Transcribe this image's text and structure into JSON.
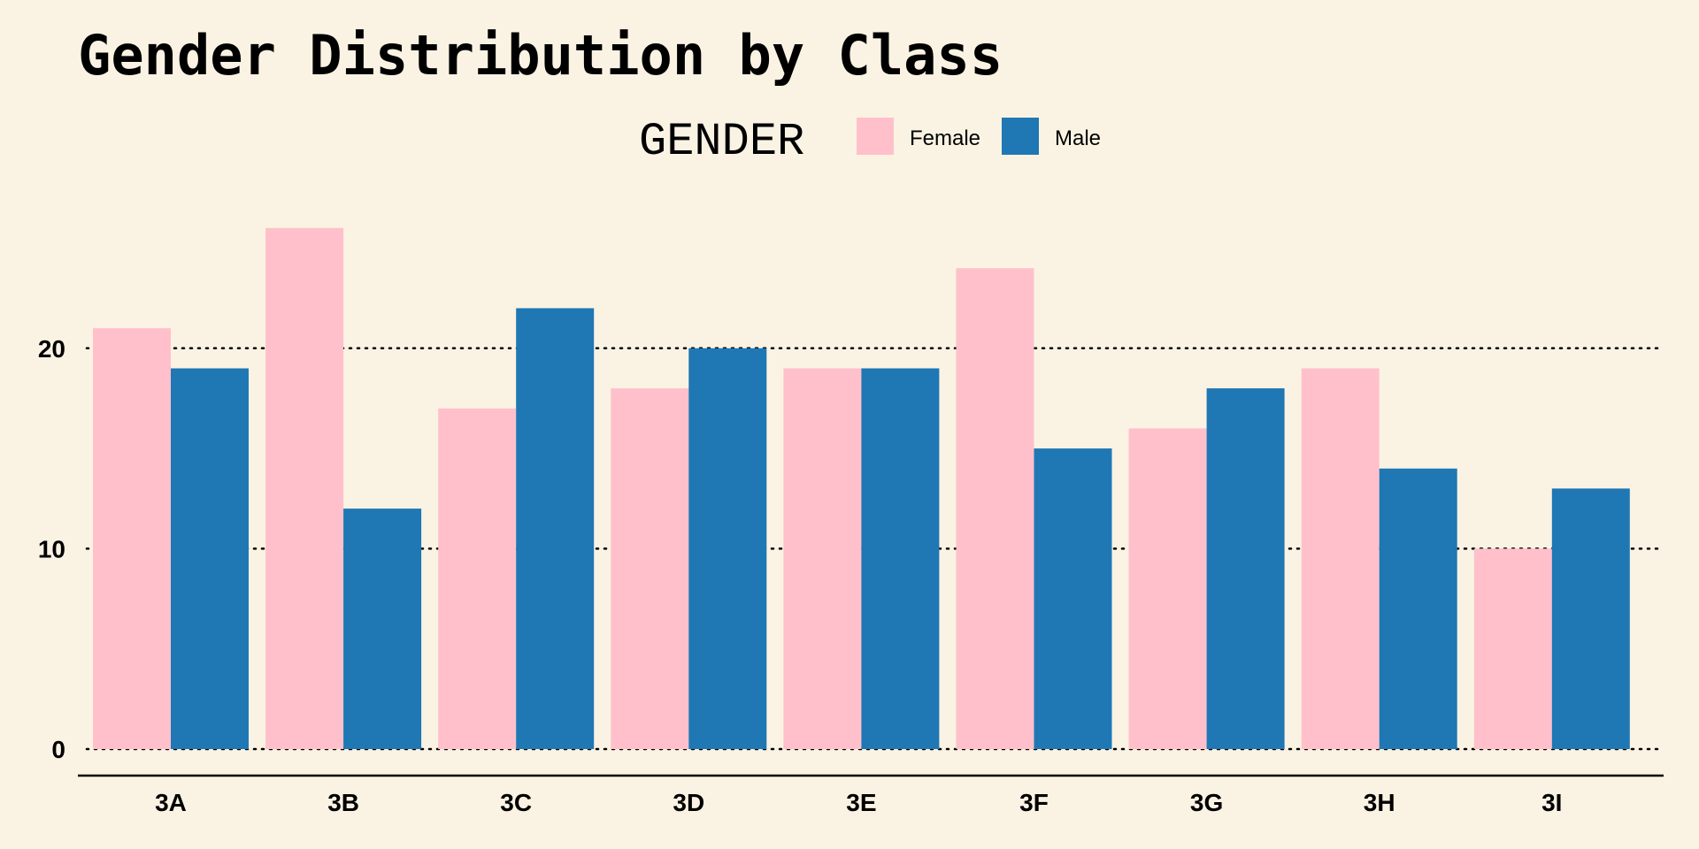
{
  "chart_data": {
    "type": "bar",
    "title": "Gender Distribution by Class",
    "xlabel": "",
    "ylabel": "",
    "categories": [
      "3A",
      "3B",
      "3C",
      "3D",
      "3E",
      "3F",
      "3G",
      "3H",
      "3I"
    ],
    "series": [
      {
        "name": "Female",
        "color": "#ffc0cb",
        "values": [
          21,
          26,
          17,
          18,
          19,
          24,
          16,
          19,
          10
        ]
      },
      {
        "name": "Male",
        "color": "#1f77b4",
        "values": [
          19,
          12,
          22,
          20,
          19,
          15,
          18,
          14,
          13
        ]
      }
    ],
    "ylim": [
      0,
      27
    ],
    "yticks": [
      0,
      10,
      20
    ],
    "grid": "horizontal-dotted",
    "legend": {
      "title": "GENDER",
      "placement": "top"
    }
  },
  "colors": {
    "background": "#faf3e3",
    "female": "#ffc0cb",
    "male": "#1f77b4"
  }
}
